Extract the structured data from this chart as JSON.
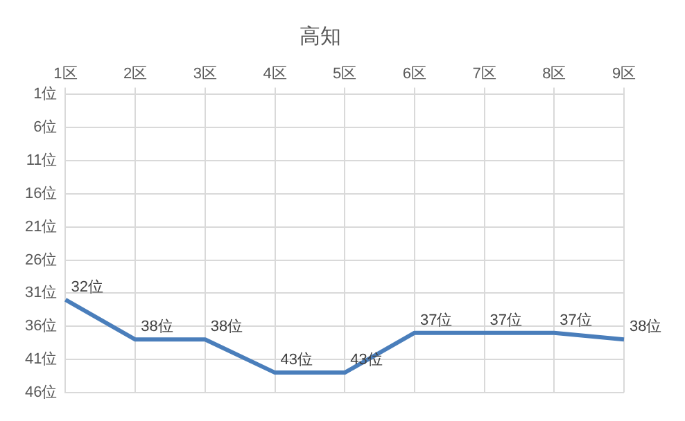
{
  "chart_data": {
    "type": "line",
    "title": "高知",
    "categories": [
      "1区",
      "2区",
      "3区",
      "4区",
      "5区",
      "6区",
      "7区",
      "8区",
      "9区"
    ],
    "series": [
      {
        "color": "#4a7ebb",
        "values": [
          32,
          38,
          38,
          43,
          43,
          37,
          37,
          37,
          38
        ],
        "value_labels": [
          "32位",
          "38位",
          "38位",
          "43位",
          "43位",
          "37位",
          "37位",
          "37位",
          "38位"
        ]
      }
    ],
    "ylim": [
      46,
      1
    ],
    "yticks": [
      {
        "value": 1,
        "label": "1位"
      },
      {
        "value": 6,
        "label": "6位"
      },
      {
        "value": 11,
        "label": "11位"
      },
      {
        "value": 16,
        "label": "16位"
      },
      {
        "value": 21,
        "label": "21位"
      },
      {
        "value": 26,
        "label": "26位"
      },
      {
        "value": 31,
        "label": "31位"
      },
      {
        "value": 36,
        "label": "36位"
      },
      {
        "value": 41,
        "label": "41位"
      },
      {
        "value": 46,
        "label": "46位"
      }
    ],
    "grid": true,
    "legend": false,
    "marker": "none",
    "line_style": "solid"
  }
}
